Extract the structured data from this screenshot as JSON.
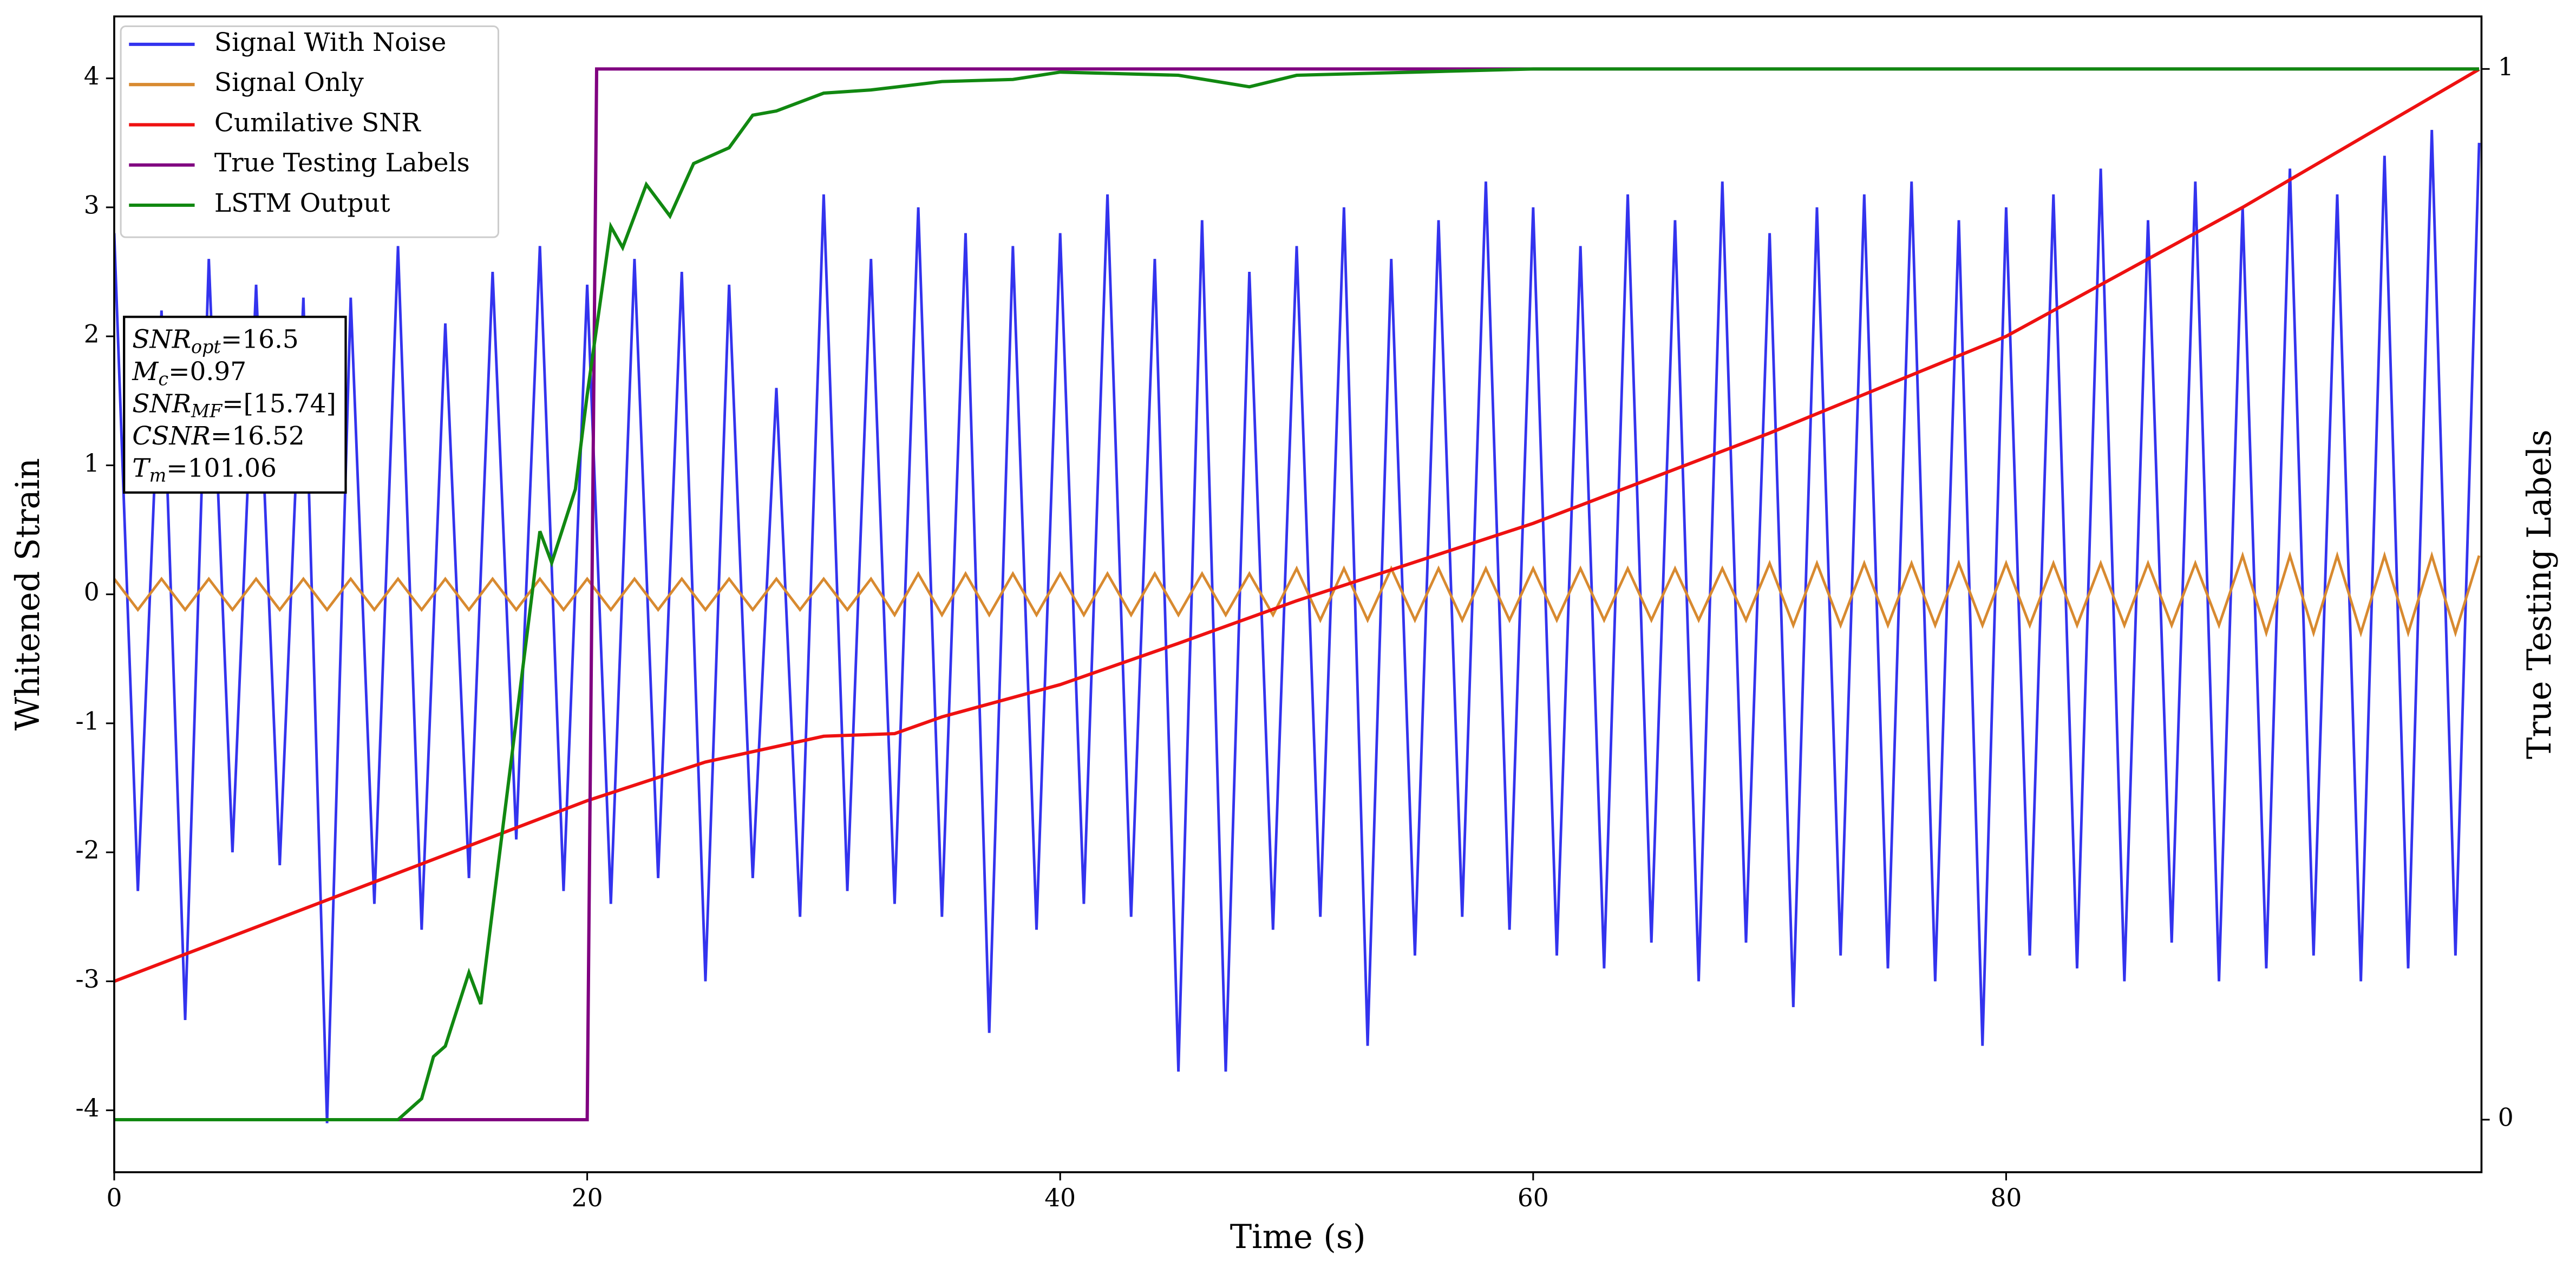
{
  "chart_data": {
    "type": "line",
    "xlabel": "Time (s)",
    "ylabel": "Whitened Strain",
    "y2label": "True Testing Labels",
    "xlim": [
      0,
      100.1
    ],
    "ylim": [
      -4.48,
      4.48
    ],
    "y2lim": [
      -0.05,
      1.05
    ],
    "xticks": [
      0,
      20,
      40,
      60,
      80
    ],
    "yticks": [
      -4,
      -3,
      -2,
      -1,
      0,
      1,
      2,
      3,
      4
    ],
    "y2ticks": [
      0,
      1
    ],
    "legend": "upper left",
    "x": [
      0,
      1,
      2,
      3,
      4,
      5,
      6,
      7,
      8,
      9,
      10,
      11,
      12,
      13,
      14,
      15,
      16,
      17,
      18,
      19,
      20,
      21,
      22,
      23,
      24,
      25,
      26,
      27,
      28,
      29,
      30,
      31,
      32,
      33,
      34,
      35,
      36,
      37,
      38,
      39,
      40,
      41,
      42,
      43,
      44,
      45,
      46,
      47,
      48,
      49,
      50,
      51,
      52,
      53,
      54,
      55,
      56,
      57,
      58,
      59,
      60,
      61,
      62,
      63,
      64,
      65,
      66,
      67,
      68,
      69,
      70,
      71,
      72,
      73,
      74,
      75,
      76,
      77,
      78,
      79,
      80,
      81,
      82,
      83,
      84,
      85,
      86,
      87,
      88,
      89,
      90,
      91,
      92,
      93,
      94,
      95,
      96,
      97,
      98,
      99,
      100
    ],
    "series": [
      {
        "name": "Signal With Noise",
        "color": "#3333ee",
        "values": [
          2.8,
          -2.3,
          2.2,
          -3.3,
          2.6,
          -2.0,
          2.4,
          -2.1,
          2.3,
          -4.1,
          2.3,
          -2.4,
          2.7,
          -2.6,
          2.1,
          -2.2,
          2.5,
          -1.9,
          2.7,
          -2.3,
          2.4,
          -2.4,
          2.6,
          -2.2,
          2.5,
          -3.0,
          2.4,
          -2.2,
          1.6,
          -2.5,
          3.1,
          -2.3,
          2.6,
          -2.4,
          3.0,
          -2.5,
          2.8,
          -3.4,
          2.7,
          -2.6,
          2.8,
          -2.4,
          3.1,
          -2.5,
          2.6,
          -3.7,
          2.9,
          -3.7,
          2.5,
          -2.6,
          2.7,
          -2.5,
          3.0,
          -3.5,
          2.6,
          -2.8,
          2.9,
          -2.5,
          3.2,
          -2.6,
          3.0,
          -2.8,
          2.7,
          -2.9,
          3.1,
          -2.7,
          2.9,
          -3.0,
          3.2,
          -2.7,
          2.8,
          -3.2,
          3.0,
          -2.8,
          3.1,
          -2.9,
          3.2,
          -3.0,
          2.9,
          -3.5,
          3.0,
          -2.8,
          3.1,
          -2.9,
          3.3,
          -3.0,
          2.9,
          -2.7,
          3.2,
          -3.0,
          3.0,
          -2.9,
          3.3,
          -2.8,
          3.1,
          -3.0,
          3.4,
          -2.9,
          3.6,
          -2.8,
          3.5
        ]
      },
      {
        "name": "Signal Only",
        "color": "#d88a30",
        "values": [
          0.12,
          -0.12,
          0.12,
          -0.12,
          0.12,
          -0.12,
          0.12,
          -0.12,
          0.12,
          -0.12,
          0.12,
          -0.12,
          0.12,
          -0.12,
          0.12,
          -0.12,
          0.12,
          -0.12,
          0.12,
          -0.12,
          0.12,
          -0.12,
          0.12,
          -0.12,
          0.12,
          -0.12,
          0.12,
          -0.12,
          0.12,
          -0.12,
          0.12,
          -0.12,
          0.12,
          -0.16,
          0.16,
          -0.16,
          0.16,
          -0.16,
          0.16,
          -0.16,
          0.16,
          -0.16,
          0.16,
          -0.16,
          0.16,
          -0.16,
          0.16,
          -0.16,
          0.16,
          -0.16,
          0.2,
          -0.2,
          0.2,
          -0.2,
          0.2,
          -0.2,
          0.2,
          -0.2,
          0.2,
          -0.2,
          0.2,
          -0.2,
          0.2,
          -0.2,
          0.2,
          -0.2,
          0.2,
          -0.2,
          0.2,
          -0.2,
          0.24,
          -0.24,
          0.24,
          -0.24,
          0.24,
          -0.24,
          0.24,
          -0.24,
          0.24,
          -0.24,
          0.24,
          -0.24,
          0.24,
          -0.24,
          0.24,
          -0.24,
          0.24,
          -0.24,
          0.24,
          -0.24,
          0.3,
          -0.3,
          0.3,
          -0.3,
          0.3,
          -0.3,
          0.3,
          -0.3,
          0.3,
          -0.3,
          0.3
        ]
      },
      {
        "name": "Cumilative SNR",
        "color": "#ee1111",
        "x": [
          0,
          10,
          20,
          25,
          30,
          33,
          35,
          40,
          45,
          50,
          55,
          60,
          70,
          80,
          90,
          100
        ],
        "values": [
          -3.0,
          -2.3,
          -1.6,
          -1.3,
          -1.1,
          -1.08,
          -0.95,
          -0.7,
          -0.38,
          -0.05,
          0.25,
          0.55,
          1.25,
          2.0,
          3.0,
          4.07
        ]
      },
      {
        "name": "True Testing Labels",
        "color": "#800080",
        "axis": "y2",
        "x": [
          0,
          20,
          20.4,
          100
        ],
        "values": [
          0,
          0,
          1,
          1
        ]
      },
      {
        "name": "LSTM Output",
        "color": "#118811",
        "axis": "y2",
        "x": [
          0,
          12,
          13,
          13.5,
          14,
          15,
          15.5,
          16,
          17,
          18,
          18.5,
          19.5,
          20,
          21,
          21.5,
          22.5,
          23.5,
          24.5,
          26,
          27,
          28,
          30,
          32,
          35,
          38,
          40,
          45,
          48,
          50,
          55,
          60,
          100
        ],
        "values": [
          0,
          0,
          0.02,
          0.06,
          0.07,
          0.14,
          0.11,
          0.2,
          0.38,
          0.56,
          0.53,
          0.6,
          0.69,
          0.85,
          0.83,
          0.89,
          0.86,
          0.91,
          0.925,
          0.956,
          0.96,
          0.977,
          0.98,
          0.988,
          0.99,
          0.997,
          0.994,
          0.983,
          0.994,
          0.997,
          1,
          1
        ]
      }
    ],
    "annotations": [
      {
        "text": "SNR",
        "sub": "opt",
        "value": "=16.5"
      },
      {
        "text": "M",
        "sub": "c",
        "value": "=0.97"
      },
      {
        "text": "SNR",
        "sub": "MF",
        "value": "=[15.74]"
      },
      {
        "text": "CSNR",
        "value": "=16.52"
      },
      {
        "text": "T",
        "sub": "m",
        "value": "=101.06"
      }
    ]
  }
}
